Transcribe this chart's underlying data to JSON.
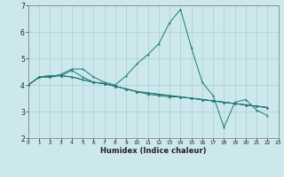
{
  "title": "",
  "xlabel": "Humidex (Indice chaleur)",
  "background_color": "#cce8ec",
  "grid_color": "#aaccd4",
  "line_color": "#1a7a6e",
  "xlim": [
    0,
    23
  ],
  "ylim": [
    2,
    7
  ],
  "xticks": [
    0,
    1,
    2,
    3,
    4,
    5,
    6,
    7,
    8,
    9,
    10,
    11,
    12,
    13,
    14,
    15,
    16,
    17,
    18,
    19,
    20,
    21,
    22,
    23
  ],
  "yticks": [
    2,
    3,
    4,
    5,
    6,
    7
  ],
  "series": [
    [
      4.0,
      4.3,
      4.3,
      4.4,
      4.6,
      4.6,
      4.3,
      4.1,
      4.0,
      4.35,
      4.8,
      5.15,
      5.55,
      6.35,
      6.85,
      5.4,
      4.1,
      3.6,
      2.4,
      3.35,
      3.45,
      3.05,
      2.85
    ],
    [
      4.0,
      4.3,
      4.3,
      4.35,
      4.55,
      4.3,
      4.1,
      4.05,
      3.95,
      3.85,
      3.75,
      3.65,
      3.6,
      3.55,
      3.55,
      3.5,
      3.45,
      3.4,
      3.35,
      3.3,
      3.25,
      3.2,
      3.15
    ],
    [
      4.0,
      4.3,
      4.35,
      4.35,
      4.3,
      4.2,
      4.1,
      4.05,
      3.95,
      3.85,
      3.75,
      3.7,
      3.65,
      3.6,
      3.55,
      3.5,
      3.45,
      3.4,
      3.35,
      3.3,
      3.25,
      3.2,
      3.15
    ],
    [
      4.0,
      4.3,
      4.35,
      4.35,
      4.3,
      4.2,
      4.1,
      4.05,
      3.95,
      3.85,
      3.75,
      3.7,
      3.65,
      3.6,
      3.55,
      3.5,
      3.45,
      3.4,
      3.35,
      3.3,
      3.25,
      3.2,
      3.15
    ]
  ],
  "figsize": [
    3.2,
    2.0
  ],
  "dpi": 100
}
